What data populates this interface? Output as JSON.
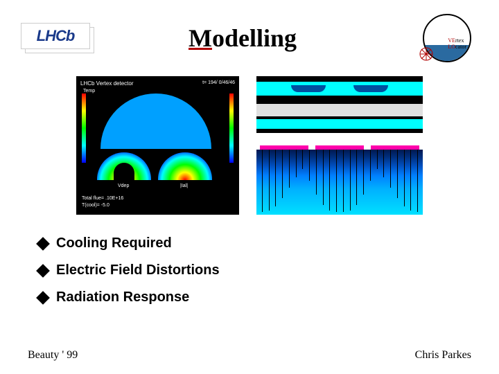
{
  "header": {
    "logo_left_text": "LHCb",
    "title": "Modelling",
    "logo_right_line1": "VErtex",
    "logo_right_line2": "LOcator"
  },
  "sim_left": {
    "background_color": "#000000",
    "title": "LHCb Vertex detector",
    "right_label": "t= 194/ 0/46/46",
    "left_label": "Temp",
    "colorbar_gradient": [
      "#ff0000",
      "#ffff00",
      "#00ff00",
      "#00ffff",
      "#0000ff"
    ],
    "semicircle_color": "#00a0ff",
    "bottom_label_vdep": "Vdep",
    "bottom_label_ial": "|Ial|",
    "footer_line1": "Total flue= .10E+16",
    "footer_line2": "T(cool)= -5.0"
  },
  "sim_right_top": {
    "background_color": "#000000",
    "band_color": "#00ffff",
    "dip_color": "#0050a0"
  },
  "sim_right_bottom": {
    "pink_bar_color": "#ff00aa",
    "gradient": [
      "#001850",
      "#003080",
      "#0050c0",
      "#0080ff",
      "#00b0ff",
      "#00e0ff"
    ],
    "field_lines": {
      "count": 24,
      "color": "#000000",
      "heights": [
        90,
        88,
        82,
        70,
        55,
        40,
        28,
        45,
        65,
        80,
        88,
        90,
        90,
        88,
        80,
        65,
        45,
        28,
        40,
        55,
        70,
        82,
        88,
        90
      ]
    }
  },
  "bullets": {
    "items": [
      {
        "label": "Cooling Required"
      },
      {
        "label": "Electric Field Distortions"
      },
      {
        "label": "Radiation Response"
      }
    ],
    "diamond_color": "#000000",
    "text_color": "#000000",
    "font_size": 20,
    "font_weight": "bold"
  },
  "footer": {
    "left": "Beauty ' 99",
    "right": "Chris Parkes",
    "font_family": "Times New Roman",
    "font_size": 16
  }
}
